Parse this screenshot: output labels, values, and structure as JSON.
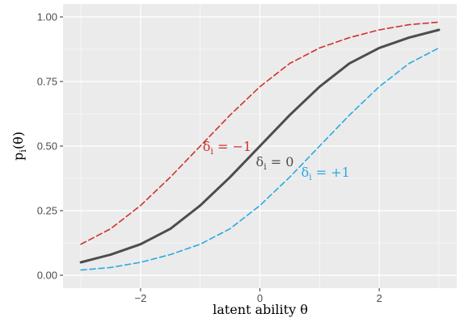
{
  "chart_data": {
    "type": "line",
    "title": "",
    "xlabel": "latent ability θ",
    "ylabel": "p_i(θ)",
    "xlim": [
      -3.3,
      3.3
    ],
    "ylim": [
      -0.05,
      1.05
    ],
    "x_ticks": [
      -2,
      0,
      2
    ],
    "x_tick_labels": [
      "−2",
      "0",
      "2"
    ],
    "y_ticks": [
      0,
      0.25,
      0.5,
      0.75,
      1
    ],
    "y_tick_labels": [
      "0.00",
      "0.25",
      "0.50",
      "0.75",
      "1.00"
    ],
    "grid": true,
    "legend": "none",
    "panel_background": "#ebebeb",
    "series": [
      {
        "label": "δi = −1",
        "color": "#d0312d",
        "style": "dashed",
        "delta": -1,
        "x": [
          -3,
          -2.5,
          -2,
          -1.5,
          -1,
          -0.5,
          0,
          0.5,
          1,
          1.5,
          2,
          2.5,
          3
        ],
        "y": [
          0.12,
          0.18,
          0.27,
          0.38,
          0.5,
          0.62,
          0.73,
          0.82,
          0.88,
          0.92,
          0.95,
          0.97,
          0.98
        ]
      },
      {
        "label": "δi = 0",
        "color": "#4d4d4d",
        "style": "solid",
        "delta": 0,
        "x": [
          -3,
          -2.5,
          -2,
          -1.5,
          -1,
          -0.5,
          0,
          0.5,
          1,
          1.5,
          2,
          2.5,
          3
        ],
        "y": [
          0.05,
          0.08,
          0.12,
          0.18,
          0.27,
          0.38,
          0.5,
          0.62,
          0.73,
          0.82,
          0.88,
          0.92,
          0.95
        ]
      },
      {
        "label": "δi = +1",
        "color": "#29aae1",
        "style": "dashed",
        "delta": 1,
        "x": [
          -3,
          -2.5,
          -2,
          -1.5,
          -1,
          -0.5,
          0,
          0.5,
          1,
          1.5,
          2,
          2.5,
          3
        ],
        "y": [
          0.02,
          0.03,
          0.05,
          0.08,
          0.12,
          0.18,
          0.27,
          0.38,
          0.5,
          0.62,
          0.73,
          0.82,
          0.88
        ]
      }
    ],
    "annotations": [
      {
        "text": "δi = −1",
        "x": -0.55,
        "y": 0.5,
        "color": "#d0312d"
      },
      {
        "text": "δi = 0",
        "x": 0.25,
        "y": 0.44,
        "color": "#4d4d4d"
      },
      {
        "text": "δi = +1",
        "x": 1.1,
        "y": 0.4,
        "color": "#29aae1"
      }
    ]
  }
}
